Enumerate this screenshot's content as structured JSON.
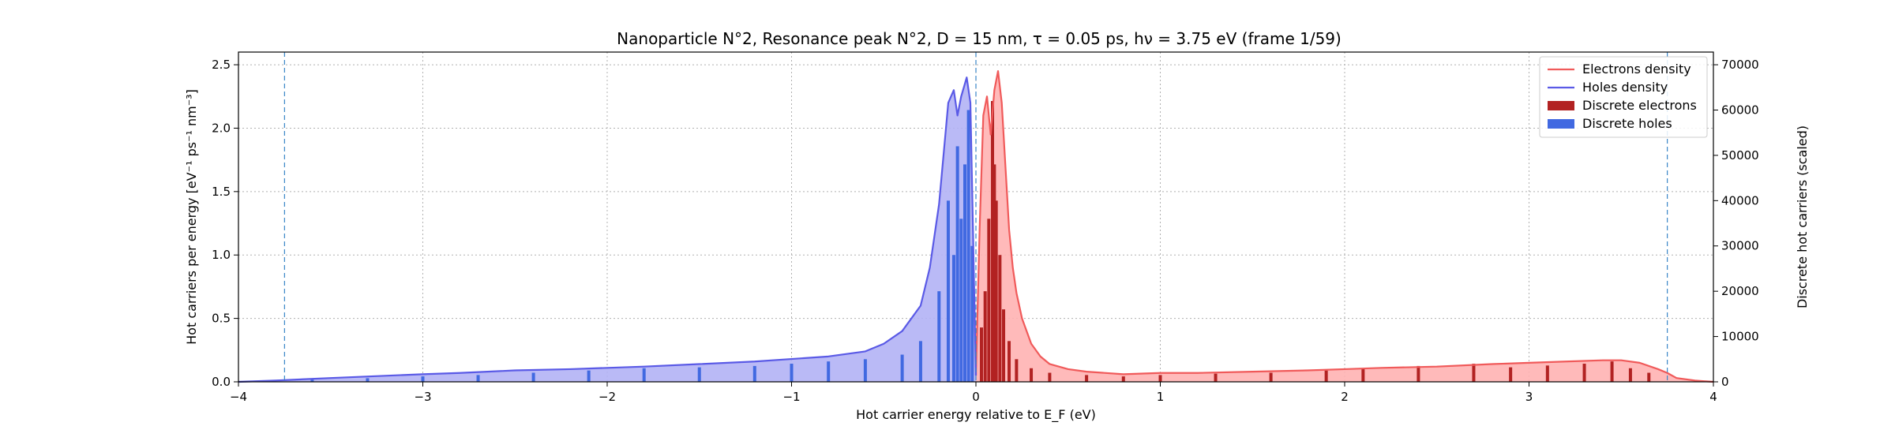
{
  "chart_data": {
    "type": "area",
    "title": "Nanoparticle N°2, Resonance peak N°2, D = 15 nm, τ = 0.05 ps, hν = 3.75 eV   (frame 1/59)",
    "xlabel": "Hot carrier energy relative to E_F (eV)",
    "ylabel_left": "Hot carriers per energy [eV⁻¹ ps⁻¹ nm⁻³]",
    "ylabel_right": "Discrete hot carriers (scaled)",
    "xlim": [
      -4,
      4
    ],
    "ylim_left": [
      0,
      2.6
    ],
    "ylim_right": [
      0,
      72800
    ],
    "x_ticks": [
      -4,
      -3,
      -2,
      -1,
      0,
      1,
      2,
      3,
      4
    ],
    "x_tick_labels": [
      "−4",
      "−3",
      "−2",
      "−1",
      "0",
      "1",
      "2",
      "3",
      "4"
    ],
    "y_left_ticks": [
      0,
      0.5,
      1.0,
      1.5,
      2.0,
      2.5
    ],
    "y_left_tick_labels": [
      "0.0",
      "0.5",
      "1.0",
      "1.5",
      "2.0",
      "2.5"
    ],
    "y_right_ticks": [
      0,
      10000,
      20000,
      30000,
      40000,
      50000,
      60000,
      70000
    ],
    "y_right_tick_labels": [
      "0",
      "10000",
      "20000",
      "30000",
      "40000",
      "50000",
      "60000",
      "70000"
    ],
    "grid": true,
    "legend_position": "top-right",
    "vlines": [
      -3.75,
      0,
      3.75
    ],
    "series": [
      {
        "name": "Electrons density",
        "kind": "line-fill",
        "color": "#f05a5a",
        "fill": "#ffb3b3",
        "x": [
          0,
          0.02,
          0.04,
          0.06,
          0.08,
          0.1,
          0.12,
          0.14,
          0.16,
          0.18,
          0.2,
          0.22,
          0.25,
          0.3,
          0.35,
          0.4,
          0.5,
          0.6,
          0.8,
          1.0,
          1.2,
          1.5,
          1.8,
          2.0,
          2.2,
          2.5,
          2.8,
          3.0,
          3.2,
          3.4,
          3.5,
          3.6,
          3.7,
          3.75,
          3.8,
          3.9,
          4.0
        ],
        "y": [
          0.05,
          1.2,
          2.1,
          2.25,
          1.95,
          2.3,
          2.45,
          2.2,
          1.7,
          1.2,
          0.9,
          0.7,
          0.5,
          0.3,
          0.2,
          0.14,
          0.1,
          0.08,
          0.06,
          0.07,
          0.07,
          0.08,
          0.09,
          0.1,
          0.11,
          0.12,
          0.14,
          0.15,
          0.16,
          0.17,
          0.17,
          0.15,
          0.1,
          0.07,
          0.03,
          0.01,
          0.0
        ]
      },
      {
        "name": "Holes density",
        "kind": "line-fill",
        "color": "#5a5ae6",
        "fill": "#b3b3f5",
        "x": [
          -4.0,
          -3.8,
          -3.5,
          -3.0,
          -2.8,
          -2.5,
          -2.2,
          -2.0,
          -1.8,
          -1.5,
          -1.2,
          -1.0,
          -0.8,
          -0.6,
          -0.5,
          -0.4,
          -0.3,
          -0.25,
          -0.2,
          -0.15,
          -0.12,
          -0.1,
          -0.08,
          -0.05,
          -0.03,
          0.0
        ],
        "y": [
          0.0,
          0.01,
          0.03,
          0.06,
          0.07,
          0.09,
          0.1,
          0.11,
          0.12,
          0.14,
          0.16,
          0.18,
          0.2,
          0.24,
          0.3,
          0.4,
          0.6,
          0.9,
          1.4,
          2.2,
          2.3,
          2.1,
          2.25,
          2.4,
          2.2,
          0.05
        ]
      },
      {
        "name": "Discrete electrons",
        "kind": "bars",
        "axis": "right",
        "color": "#b22222",
        "x": [
          0.03,
          0.05,
          0.07,
          0.09,
          0.1,
          0.11,
          0.13,
          0.15,
          0.18,
          0.22,
          0.3,
          0.4,
          0.6,
          0.8,
          1.0,
          1.3,
          1.6,
          1.9,
          2.1,
          2.4,
          2.7,
          2.9,
          3.1,
          3.3,
          3.45,
          3.55,
          3.65
        ],
        "values": [
          12000,
          20000,
          36000,
          62000,
          48000,
          40000,
          28000,
          16000,
          9000,
          5000,
          3000,
          2000,
          1500,
          1200,
          1500,
          1800,
          2000,
          2500,
          3000,
          3500,
          4000,
          3200,
          3600,
          4000,
          4500,
          3000,
          2000
        ]
      },
      {
        "name": "Discrete holes",
        "kind": "bars",
        "axis": "right",
        "color": "#4169e1",
        "x": [
          -3.6,
          -3.3,
          -3.0,
          -2.7,
          -2.4,
          -2.1,
          -1.8,
          -1.5,
          -1.2,
          -1.0,
          -0.8,
          -0.6,
          -0.4,
          -0.3,
          -0.2,
          -0.15,
          -0.12,
          -0.1,
          -0.08,
          -0.06,
          -0.04,
          -0.02
        ],
        "values": [
          500,
          800,
          1200,
          1500,
          2000,
          2500,
          3000,
          3200,
          3500,
          4000,
          4500,
          5000,
          6000,
          9000,
          20000,
          40000,
          28000,
          52000,
          36000,
          48000,
          60000,
          30000
        ]
      }
    ]
  }
}
